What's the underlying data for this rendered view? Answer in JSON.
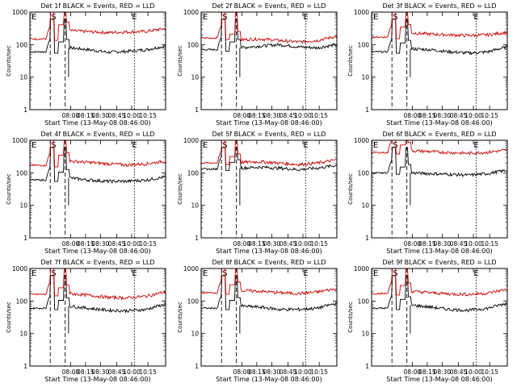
{
  "figure": {
    "background": "#ffffff",
    "axis_color": "#000000",
    "events_color": "#000000",
    "lld_color": "#cc0000"
  },
  "panels_common": {
    "ylabel": "Counts/sec",
    "xlabel": "Start Time (13-May-08 08:46:00)",
    "y_ticks": [
      "1",
      "10",
      "100",
      "1000"
    ],
    "x_ticks": [
      "08:00",
      "08:15",
      "08:30",
      "08:45",
      "10:00",
      "10:15"
    ],
    "markers": [
      "E",
      "S",
      "E"
    ]
  },
  "chart_data": [
    {
      "type": "line",
      "title": "Det 1f BLACK = Events, RED = LLD",
      "xlabel": "Start Time (13-May-08 08:46:00)",
      "ylabel": "Counts/sec",
      "ylim": [
        1,
        1000
      ],
      "yscale": "log",
      "x_ticks": [
        "08:00",
        "08:15",
        "08:30",
        "08:45",
        "10:00",
        "10:15"
      ],
      "series": [
        {
          "name": "BLACK = Events",
          "pre": 60,
          "mid": [
            80,
            70,
            58,
            62,
            70,
            90
          ],
          "burst": 600
        },
        {
          "name": "RED = LLD",
          "pre": 150,
          "mid": [
            270,
            250,
            235,
            245,
            255,
            310
          ],
          "burst": 1000
        }
      ],
      "markers": [
        {
          "label": "E",
          "style": "dashed"
        },
        {
          "label": "S",
          "style": "dashed"
        },
        {
          "label": "E",
          "style": "dotted"
        }
      ]
    },
    {
      "type": "line",
      "title": "Det 2f BLACK = Events, RED = LLD",
      "xlabel": "Start Time (13-May-08 08:46:00)",
      "ylabel": "Counts/sec",
      "ylim": [
        1,
        1000
      ],
      "yscale": "log",
      "x_ticks": [
        "08:00",
        "08:15",
        "08:30",
        "08:45",
        "10:00",
        "10:15"
      ],
      "series": [
        {
          "name": "BLACK = Events",
          "pre": 70,
          "mid": [
            80,
            90,
            100,
            85,
            80,
            100
          ],
          "burst": 600
        },
        {
          "name": "RED = LLD",
          "pre": 160,
          "mid": [
            140,
            150,
            135,
            120,
            135,
            180
          ],
          "burst": 1000
        }
      ],
      "markers": [
        {
          "label": "E",
          "style": "dashed"
        },
        {
          "label": "S",
          "style": "dashed"
        },
        {
          "label": "E",
          "style": "dotted"
        }
      ]
    },
    {
      "type": "line",
      "title": "Det 3f BLACK = Events, RED = LLD",
      "xlabel": "Start Time (13-May-08 08:46:00)",
      "ylabel": "Counts/sec",
      "ylim": [
        1,
        1000
      ],
      "yscale": "log",
      "x_ticks": [
        "08:00",
        "08:15",
        "08:30",
        "08:45",
        "10:00",
        "10:15"
      ],
      "series": [
        {
          "name": "BLACK = Events",
          "pre": 60,
          "mid": [
            75,
            70,
            60,
            55,
            60,
            85
          ],
          "burst": 600
        },
        {
          "name": "RED = LLD",
          "pre": 170,
          "mid": [
            230,
            210,
            200,
            190,
            200,
            240
          ],
          "burst": 1000
        }
      ],
      "markers": [
        {
          "label": "E",
          "style": "dashed"
        },
        {
          "label": "S",
          "style": "dashed"
        },
        {
          "label": "E",
          "style": "dotted"
        }
      ]
    },
    {
      "type": "line",
      "title": "Det 4f BLACK = Events, RED = LLD",
      "xlabel": "Start Time (13-May-08 08:46:00)",
      "ylabel": "Counts/sec",
      "ylim": [
        1,
        1000
      ],
      "yscale": "log",
      "x_ticks": [
        "08:00",
        "08:15",
        "08:30",
        "08:45",
        "10:00",
        "10:15"
      ],
      "series": [
        {
          "name": "BLACK = Events",
          "pre": 60,
          "mid": [
            70,
            60,
            55,
            55,
            60,
            75
          ],
          "burst": 600
        },
        {
          "name": "RED = LLD",
          "pre": 170,
          "mid": [
            230,
            210,
            190,
            175,
            190,
            230
          ],
          "burst": 1000
        }
      ],
      "markers": [
        {
          "label": "E",
          "style": "dashed"
        },
        {
          "label": "S",
          "style": "dashed"
        },
        {
          "label": "E",
          "style": "dotted"
        }
      ]
    },
    {
      "type": "line",
      "title": "Det 5f BLACK = Events, RED = LLD",
      "xlabel": "Start Time (13-May-08 08:46:00)",
      "ylabel": "Counts/sec",
      "ylim": [
        1,
        1000
      ],
      "yscale": "log",
      "x_ticks": [
        "08:00",
        "08:15",
        "08:30",
        "08:45",
        "10:00",
        "10:15"
      ],
      "series": [
        {
          "name": "BLACK = Events",
          "pre": 130,
          "mid": [
            140,
            150,
            140,
            125,
            140,
            170
          ],
          "burst": 600
        },
        {
          "name": "RED = LLD",
          "pre": 200,
          "mid": [
            210,
            220,
            200,
            180,
            200,
            250
          ],
          "burst": 1000
        }
      ],
      "markers": [
        {
          "label": "E",
          "style": "dashed"
        },
        {
          "label": "S",
          "style": "dashed"
        },
        {
          "label": "E",
          "style": "dotted"
        }
      ]
    },
    {
      "type": "line",
      "title": "Det 6f BLACK = Events, RED = LLD",
      "xlabel": "Start Time (13-May-08 08:46:00)",
      "ylabel": "Counts/sec",
      "ylim": [
        1,
        1000
      ],
      "yscale": "log",
      "x_ticks": [
        "08:00",
        "08:15",
        "08:30",
        "08:45",
        "10:00",
        "10:15"
      ],
      "series": [
        {
          "name": "BLACK = Events",
          "pre": 100,
          "mid": [
            100,
            95,
            90,
            85,
            95,
            120
          ],
          "burst": 600
        },
        {
          "name": "RED = LLD",
          "pre": 420,
          "mid": [
            480,
            450,
            420,
            400,
            430,
            500
          ],
          "burst": 1000
        }
      ],
      "markers": [
        {
          "label": "E",
          "style": "dashed"
        },
        {
          "label": "S",
          "style": "dashed"
        },
        {
          "label": "E",
          "style": "dotted"
        }
      ]
    },
    {
      "type": "line",
      "title": "Det 7f BLACK = Events, RED = LLD",
      "xlabel": "Start Time (13-May-08 08:46:00)",
      "ylabel": "Counts/sec",
      "ylim": [
        1,
        1000
      ],
      "yscale": "log",
      "x_ticks": [
        "08:00",
        "08:15",
        "08:30",
        "08:45",
        "10:00",
        "10:15"
      ],
      "series": [
        {
          "name": "BLACK = Events",
          "pre": 60,
          "mid": [
            70,
            60,
            52,
            50,
            55,
            80
          ],
          "burst": 600
        },
        {
          "name": "RED = LLD",
          "pre": 160,
          "mid": [
            170,
            150,
            130,
            125,
            140,
            190
          ],
          "burst": 1000
        }
      ],
      "markers": [
        {
          "label": "E",
          "style": "dashed"
        },
        {
          "label": "S",
          "style": "dashed"
        },
        {
          "label": "E",
          "style": "dotted"
        }
      ]
    },
    {
      "type": "line",
      "title": "Det 8f BLACK = Events, RED = LLD",
      "xlabel": "Start Time (13-May-08 08:46:00)",
      "ylabel": "Counts/sec",
      "ylim": [
        1,
        1000
      ],
      "yscale": "log",
      "x_ticks": [
        "08:00",
        "08:15",
        "08:30",
        "08:45",
        "10:00",
        "10:15"
      ],
      "series": [
        {
          "name": "BLACK = Events",
          "pre": 60,
          "mid": [
            70,
            65,
            55,
            55,
            60,
            85
          ],
          "burst": 600
        },
        {
          "name": "RED = LLD",
          "pre": 180,
          "mid": [
            210,
            200,
            180,
            170,
            190,
            240
          ],
          "burst": 1000
        }
      ],
      "markers": [
        {
          "label": "E",
          "style": "dashed"
        },
        {
          "label": "S",
          "style": "dashed"
        },
        {
          "label": "E",
          "style": "dotted"
        }
      ]
    },
    {
      "type": "line",
      "title": "Det 9f BLACK = Events, RED = LLD",
      "xlabel": "Start Time (13-May-08 08:46:00)",
      "ylabel": "Counts/sec",
      "ylim": [
        1,
        1000
      ],
      "yscale": "log",
      "x_ticks": [
        "08:00",
        "08:15",
        "08:30",
        "08:45",
        "10:00",
        "10:15"
      ],
      "series": [
        {
          "name": "BLACK = Events",
          "pre": 60,
          "mid": [
            75,
            65,
            55,
            52,
            60,
            85
          ],
          "burst": 600
        },
        {
          "name": "RED = LLD",
          "pre": 170,
          "mid": [
            200,
            180,
            165,
            160,
            175,
            230
          ],
          "burst": 1000
        }
      ],
      "markers": [
        {
          "label": "E",
          "style": "dashed"
        },
        {
          "label": "S",
          "style": "dashed"
        },
        {
          "label": "E",
          "style": "dotted"
        }
      ]
    }
  ]
}
